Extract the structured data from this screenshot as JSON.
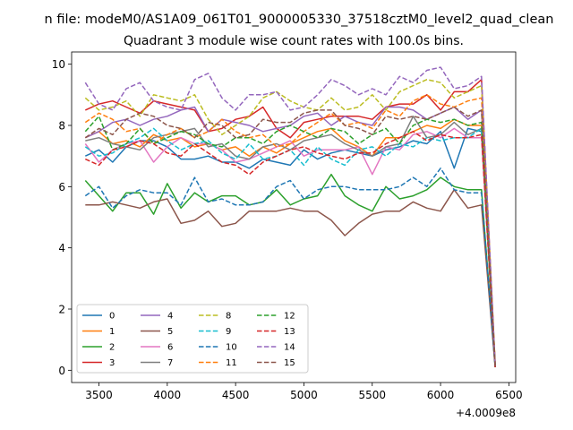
{
  "chart_data": {
    "type": "line",
    "suptitle": "n file: modeM0/AS1A09_061T01_9000005330_37518cztM0_level2_quad_clean",
    "title": "Quadrant 3 module wise count rates with 100.0s bins.",
    "offset_label": "+4.0009e8",
    "xlim": [
      3300,
      6550
    ],
    "ylim": [
      -0.4,
      10.4
    ],
    "xticks": [
      3500,
      4000,
      4500,
      5000,
      5500,
      6000,
      6500
    ],
    "yticks": [
      0,
      2,
      4,
      6,
      8,
      10
    ],
    "x": [
      3400,
      3500,
      3600,
      3700,
      3800,
      3900,
      4000,
      4100,
      4200,
      4300,
      4400,
      4500,
      4600,
      4700,
      4800,
      4900,
      5000,
      5100,
      5200,
      5300,
      5400,
      5500,
      5600,
      5700,
      5800,
      5900,
      6000,
      6100,
      6200,
      6300,
      6400
    ],
    "legend_location": "lower-left",
    "legend_columns": 4,
    "series": [
      {
        "name": "0",
        "color": "#1f77b4",
        "dash": false,
        "values": [
          7.0,
          7.2,
          6.8,
          7.3,
          7.5,
          7.5,
          7.3,
          6.9,
          6.9,
          7.0,
          6.8,
          6.8,
          6.6,
          6.9,
          6.8,
          6.7,
          7.2,
          6.9,
          7.1,
          7.2,
          7.1,
          7.0,
          7.2,
          7.3,
          7.5,
          7.4,
          7.8,
          6.6,
          7.9,
          7.8,
          0.15
        ]
      },
      {
        "name": "1",
        "color": "#ff7f0e",
        "dash": false,
        "values": [
          7.6,
          7.8,
          7.4,
          7.5,
          7.3,
          7.7,
          7.5,
          7.6,
          7.3,
          7.4,
          7.2,
          7.3,
          7.0,
          7.3,
          7.1,
          7.4,
          7.6,
          7.8,
          7.9,
          7.5,
          7.3,
          7.0,
          7.6,
          7.6,
          7.8,
          8.0,
          7.9,
          8.2,
          8.0,
          8.0,
          0.2
        ]
      },
      {
        "name": "2",
        "color": "#2ca02c",
        "dash": false,
        "values": [
          6.2,
          5.7,
          5.2,
          5.8,
          5.8,
          5.1,
          6.1,
          5.3,
          5.8,
          5.5,
          5.7,
          5.7,
          5.4,
          5.5,
          5.9,
          5.4,
          5.6,
          5.7,
          6.4,
          5.7,
          5.4,
          5.2,
          6.0,
          5.6,
          5.7,
          5.9,
          6.3,
          6.0,
          5.9,
          5.9,
          0.1
        ]
      },
      {
        "name": "3",
        "color": "#d62728",
        "dash": false,
        "values": [
          8.5,
          8.7,
          8.8,
          8.6,
          8.4,
          8.8,
          8.7,
          8.6,
          8.5,
          7.8,
          7.9,
          8.2,
          8.3,
          8.6,
          7.9,
          7.6,
          8.1,
          8.2,
          8.3,
          8.3,
          8.3,
          8.2,
          8.6,
          8.7,
          8.7,
          9.0,
          8.5,
          9.1,
          9.1,
          9.5,
          0.15
        ]
      },
      {
        "name": "4",
        "color": "#9467bd",
        "dash": false,
        "values": [
          7.6,
          7.8,
          8.1,
          8.2,
          8.0,
          8.2,
          8.3,
          8.5,
          8.6,
          7.8,
          8.2,
          8.1,
          8.0,
          7.8,
          7.9,
          8.0,
          8.3,
          8.4,
          8.0,
          8.3,
          8.1,
          8.0,
          8.6,
          8.6,
          8.5,
          8.2,
          8.4,
          8.6,
          8.2,
          8.5,
          0.1
        ]
      },
      {
        "name": "5",
        "color": "#8c564b",
        "dash": false,
        "values": [
          5.4,
          5.4,
          5.5,
          5.4,
          5.3,
          5.5,
          5.6,
          4.8,
          4.9,
          5.2,
          4.7,
          4.8,
          5.2,
          5.2,
          5.2,
          5.3,
          5.2,
          5.2,
          4.9,
          4.4,
          4.8,
          5.1,
          5.2,
          5.2,
          5.5,
          5.3,
          5.2,
          5.9,
          5.3,
          5.4,
          0.1
        ]
      },
      {
        "name": "6",
        "color": "#e377c2",
        "dash": false,
        "values": [
          7.4,
          6.8,
          7.2,
          7.4,
          7.5,
          6.8,
          7.3,
          7.6,
          7.4,
          7.4,
          7.2,
          6.8,
          6.9,
          7.1,
          7.3,
          7.5,
          7.0,
          7.2,
          7.2,
          7.2,
          7.3,
          6.4,
          7.3,
          7.2,
          7.7,
          7.8,
          7.6,
          7.9,
          7.6,
          7.6,
          0.2
        ]
      },
      {
        "name": "7",
        "color": "#7f7f7f",
        "dash": false,
        "values": [
          7.5,
          7.6,
          7.4,
          7.3,
          7.2,
          7.6,
          7.7,
          7.8,
          7.9,
          7.3,
          7.4,
          7.0,
          6.9,
          7.3,
          7.4,
          7.2,
          7.5,
          7.6,
          7.7,
          7.4,
          7.2,
          7.0,
          7.3,
          7.4,
          8.3,
          7.6,
          7.7,
          8.1,
          7.7,
          7.9,
          0.15
        ]
      },
      {
        "name": "8",
        "color": "#bcbd22",
        "dash": true,
        "values": [
          8.9,
          8.5,
          8.6,
          8.8,
          8.3,
          9.0,
          8.9,
          8.8,
          9.0,
          8.2,
          7.7,
          8.0,
          8.3,
          8.9,
          9.1,
          8.8,
          8.6,
          8.5,
          8.9,
          8.5,
          8.6,
          9.0,
          8.5,
          9.1,
          9.3,
          9.5,
          9.4,
          8.9,
          9.1,
          9.3,
          0.2
        ]
      },
      {
        "name": "9",
        "color": "#17becf",
        "dash": true,
        "values": [
          7.3,
          7.0,
          7.1,
          7.4,
          7.6,
          7.9,
          7.5,
          7.2,
          7.4,
          7.5,
          7.1,
          6.9,
          7.4,
          6.9,
          7.0,
          7.2,
          6.7,
          7.3,
          6.9,
          6.7,
          7.2,
          7.3,
          7.0,
          7.4,
          7.3,
          7.6,
          7.5,
          7.6,
          7.6,
          7.9,
          0.15
        ]
      },
      {
        "name": "10",
        "color": "#1f77b4",
        "dash": true,
        "values": [
          5.7,
          6.0,
          5.3,
          5.7,
          5.9,
          5.8,
          5.8,
          5.4,
          6.3,
          5.5,
          5.6,
          5.4,
          5.4,
          5.5,
          6.0,
          6.2,
          5.6,
          5.9,
          6.0,
          6.0,
          5.9,
          5.9,
          5.9,
          6.0,
          6.3,
          6.0,
          6.6,
          5.9,
          5.8,
          5.8,
          0.1
        ]
      },
      {
        "name": "11",
        "color": "#ff7f0e",
        "dash": true,
        "values": [
          8.1,
          8.4,
          8.2,
          7.8,
          7.9,
          7.4,
          7.7,
          7.9,
          7.6,
          7.8,
          8.2,
          7.8,
          7.6,
          7.7,
          7.3,
          7.4,
          7.8,
          8.1,
          8.4,
          8.0,
          8.1,
          7.9,
          8.5,
          8.3,
          8.8,
          9.0,
          8.7,
          8.6,
          8.8,
          8.9,
          0.2
        ]
      },
      {
        "name": "12",
        "color": "#2ca02c",
        "dash": true,
        "values": [
          7.8,
          8.3,
          7.2,
          7.4,
          7.9,
          7.4,
          7.6,
          7.8,
          7.7,
          7.4,
          7.3,
          7.6,
          7.6,
          7.4,
          7.8,
          8.0,
          7.8,
          7.6,
          7.9,
          7.8,
          7.4,
          7.7,
          7.9,
          7.4,
          8.0,
          8.2,
          8.1,
          8.2,
          8.0,
          8.1,
          0.1
        ]
      },
      {
        "name": "13",
        "color": "#d62728",
        "dash": true,
        "values": [
          6.9,
          6.7,
          7.2,
          7.3,
          7.5,
          7.4,
          7.1,
          7.0,
          7.4,
          7.1,
          6.8,
          6.7,
          6.4,
          6.8,
          7.0,
          7.2,
          7.3,
          7.1,
          7.0,
          6.9,
          7.1,
          7.1,
          7.4,
          7.6,
          7.8,
          7.5,
          7.7,
          7.6,
          7.6,
          7.7,
          0.1
        ]
      },
      {
        "name": "14",
        "color": "#9467bd",
        "dash": true,
        "values": [
          9.4,
          8.7,
          8.5,
          9.2,
          9.4,
          8.8,
          8.6,
          8.5,
          9.5,
          9.7,
          8.9,
          8.5,
          9.0,
          9.0,
          9.1,
          8.5,
          8.6,
          9.0,
          9.5,
          9.3,
          9.0,
          9.2,
          9.0,
          9.6,
          9.4,
          9.8,
          9.9,
          9.2,
          9.3,
          9.6,
          0.15
        ]
      },
      {
        "name": "15",
        "color": "#8c564b",
        "dash": true,
        "values": [
          7.6,
          7.9,
          7.7,
          8.2,
          8.4,
          8.3,
          8.0,
          7.9,
          7.6,
          8.1,
          8.0,
          7.6,
          7.7,
          8.2,
          8.1,
          8.1,
          8.4,
          8.5,
          8.5,
          8.0,
          7.9,
          7.7,
          8.3,
          8.2,
          8.3,
          8.2,
          8.4,
          8.6,
          8.3,
          8.5,
          0.15
        ]
      }
    ]
  }
}
